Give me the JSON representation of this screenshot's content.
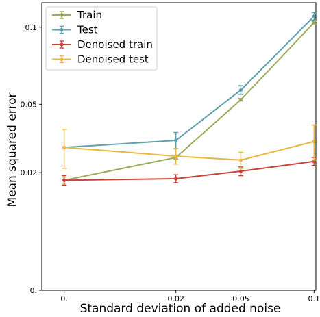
{
  "chart_data": {
    "type": "line",
    "title": "",
    "xlabel": "Standard deviation of added noise",
    "ylabel": "Mean squared error",
    "x_ticks": [
      {
        "value": 0,
        "label": "0."
      },
      {
        "value": 0.02,
        "label": "0.02"
      },
      {
        "value": 0.05,
        "label": "0.05"
      },
      {
        "value": 0.1,
        "label": "0.1"
      }
    ],
    "y_ticks": [
      {
        "value": 0,
        "label": "0."
      },
      {
        "value": 0.02,
        "label": "0.02"
      },
      {
        "value": 0.05,
        "label": "0.05"
      },
      {
        "value": 0.1,
        "label": "0.1"
      }
    ],
    "x_scale": "sqrt",
    "y_scale": "sqrt",
    "xlim": [
      -0.0008,
      0.1015
    ],
    "ylim": [
      0,
      0.1195
    ],
    "grid": false,
    "legend_position": "top-left",
    "x": [
      0,
      0.02,
      0.05,
      0.1
    ],
    "series": [
      {
        "name": "Train",
        "color": "#9aab5a",
        "values": [
          0.0175,
          0.0255,
          0.0525,
          0.1035
        ],
        "errors": [
          0.001,
          0.0006,
          0.0007,
          0.001
        ]
      },
      {
        "name": "Test",
        "color": "#5f9fad",
        "values": [
          0.0295,
          0.0325,
          0.058,
          0.1085
        ],
        "errors": [
          0.0,
          0.0035,
          0.0025,
          0.003
        ]
      },
      {
        "name": "Denoised train",
        "color": "#c8443a",
        "values": [
          0.0175,
          0.018,
          0.0205,
          0.024
        ],
        "errors": [
          0.0015,
          0.0013,
          0.0015,
          0.0015
        ]
      },
      {
        "name": "Denoised test",
        "color": "#e9b63f",
        "values": [
          0.0295,
          0.026,
          0.0245,
          0.032
        ],
        "errors": [
          0.008,
          0.003,
          0.003,
          0.0075
        ]
      }
    ]
  }
}
